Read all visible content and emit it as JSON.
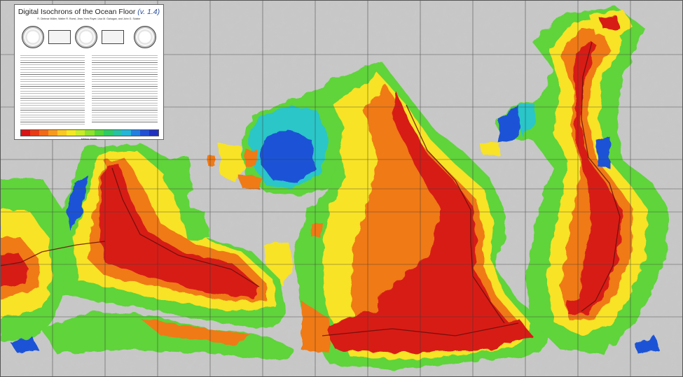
{
  "legend": {
    "title": "Digital Isochrons of the Ocean Floor",
    "version": "(v. 1.4)",
    "authors": "R. Dietmar Müller, Walter R. Roest, Jean-Yves Royer, Lisa M. Gahagan, and John G. Sclater",
    "scale_label": "Million Years",
    "scale_colors": [
      "#d81414",
      "#e83a14",
      "#f26a17",
      "#f79a1c",
      "#fbc722",
      "#f4e823",
      "#c8ec28",
      "#8fe22d",
      "#52d638",
      "#2ecb62",
      "#26c2a3",
      "#23b6d8",
      "#2380e0",
      "#2250d4",
      "#2030c0"
    ]
  },
  "colors": {
    "land": "#c9c9c9",
    "ridge_red": "#d71d14",
    "orange": "#f07a18",
    "yellow": "#f8e326",
    "green": "#5fd43a",
    "cyan": "#29c6c8",
    "blue": "#1f52d6",
    "grid": "#3a3a3a"
  }
}
